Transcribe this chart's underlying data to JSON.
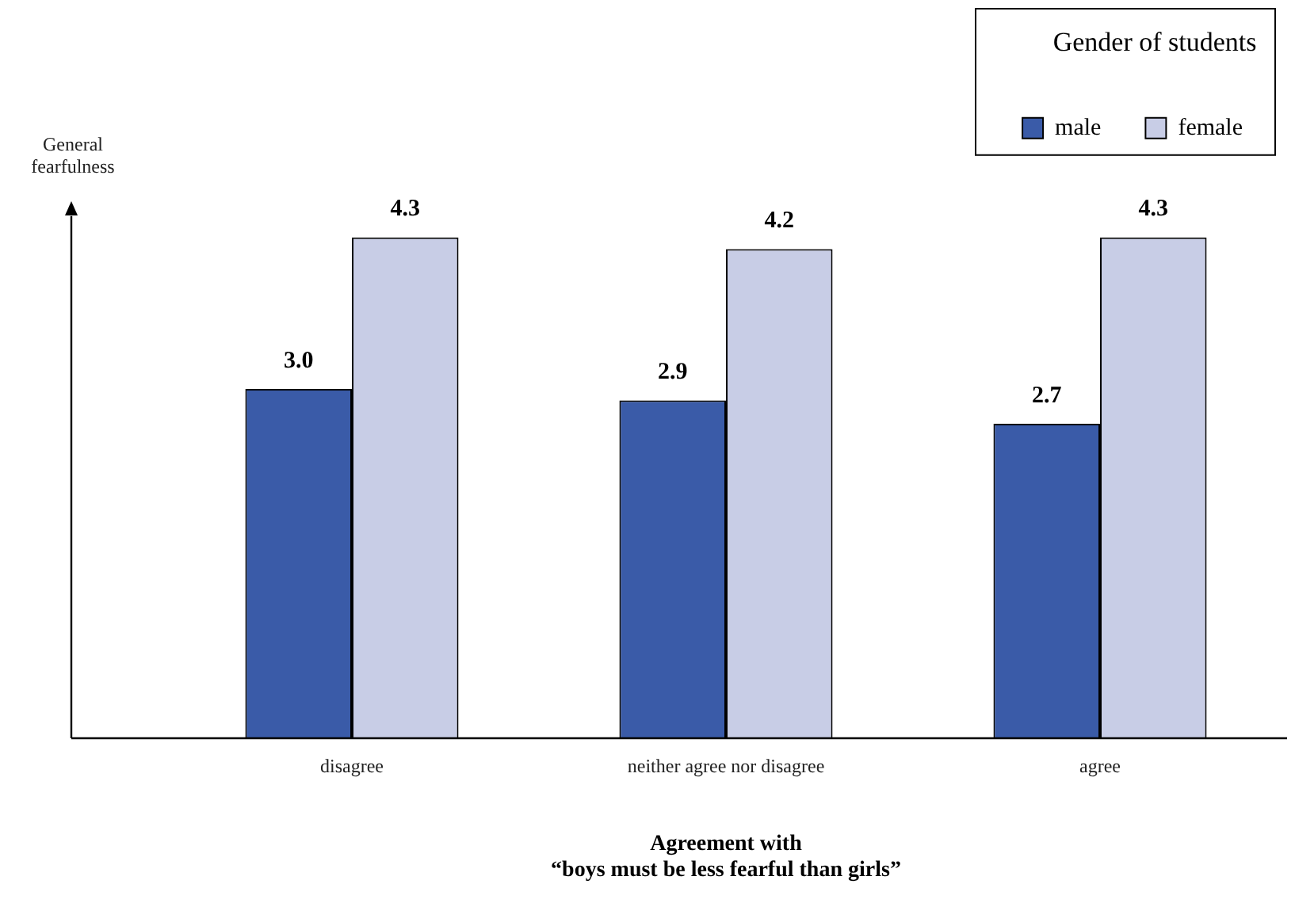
{
  "chart_data": {
    "type": "bar",
    "categories": [
      "disagree",
      "neither agree nor disagree",
      "agree"
    ],
    "series": [
      {
        "name": "male",
        "color": "#3a5ba8",
        "values": [
          3.0,
          2.9,
          2.7
        ],
        "value_labels": [
          "3.0",
          "2.9",
          "2.7"
        ]
      },
      {
        "name": "female",
        "color": "#c8cde6",
        "values": [
          4.3,
          4.2,
          4.3
        ],
        "value_labels": [
          "4.3",
          "4.2",
          "4.3"
        ]
      }
    ],
    "xlabel": "Agreement with\n“boys must be less fearful than girls”",
    "ylabel": "General\nfearfulness",
    "legend": "top right",
    "legend_title": "Gender of students"
  }
}
